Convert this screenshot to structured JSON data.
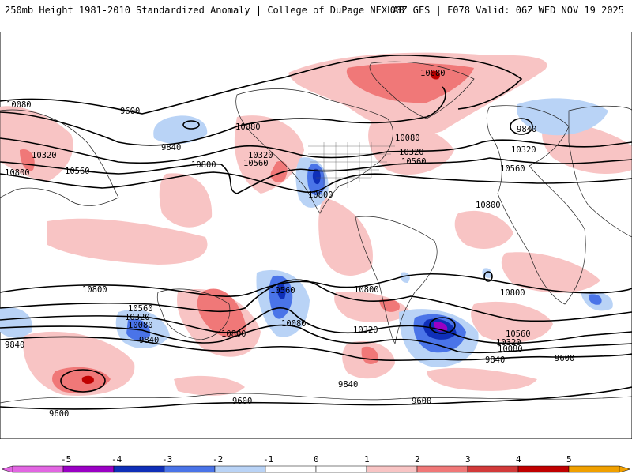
{
  "header": {
    "left": "250mb Height 1981-2010 Standardized Anomaly | College of DuPage NEXLAB",
    "right": "00Z GFS | F078 Valid: 06Z WED NOV 19 2025"
  },
  "colors": {
    "neg5": "#e266e2",
    "neg4": "#9a00c4",
    "neg3": "#0f2fb8",
    "neg2": "#4a74e8",
    "neg1": "#b9d3f6",
    "zero": "#ffffff",
    "pos1": "#f8c4c4",
    "pos2": "#f07878",
    "pos3": "#d23a3a",
    "pos4": "#c00000",
    "pos5": "#f0a000"
  },
  "colorbar": {
    "ticks": [
      "-5",
      "-4",
      "-3",
      "-2",
      "-1",
      "0",
      "1",
      "2",
      "3",
      "4",
      "5"
    ]
  },
  "contour_labels": [
    "10080",
    "9600",
    "10080",
    "9840",
    "10320",
    "10560",
    "10800",
    "10320",
    "10560",
    "10800",
    "10800",
    "10080",
    "10320",
    "10560",
    "9840",
    "10320",
    "10560",
    "10800",
    "10800",
    "10560",
    "10320",
    "10080",
    "9840",
    "10800",
    "10560",
    "10080",
    "10800",
    "10320",
    "9840",
    "9600",
    "9600",
    "10800",
    "10560",
    "10320",
    "10080",
    "9840",
    "9600",
    "10080"
  ]
}
